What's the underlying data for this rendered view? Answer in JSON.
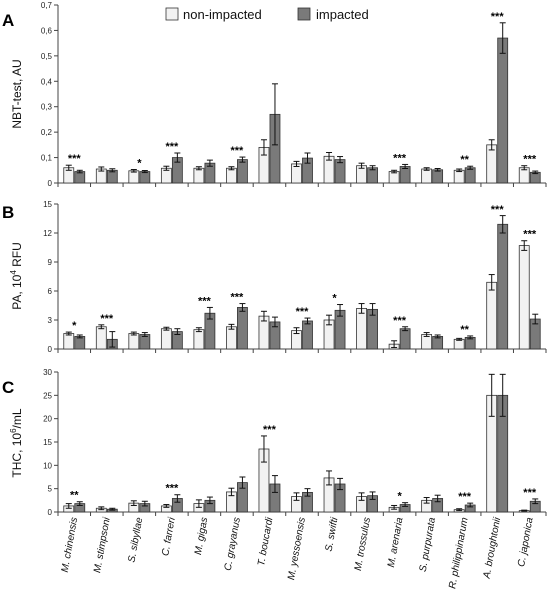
{
  "legend": {
    "entries": [
      {
        "name": "non-impacted",
        "color": "#f2f2f2"
      },
      {
        "name": "impacted",
        "color": "#7a7a7a"
      }
    ]
  },
  "categories": [
    "M. chinensis",
    "M. stimpsoni",
    "S. sibyllae",
    "C. farreri",
    "M. gigas",
    "C. grayanus",
    "T. boucardi",
    "M. yessoensis",
    "S. swifti",
    "M. trossulus",
    "M. arenaria",
    "S. purpurata",
    "R. philippinarum",
    "A. broughtonii",
    "C. japonica"
  ],
  "chart_data": [
    {
      "type": "bar",
      "panel_letter": "A",
      "ylabel": "NBT-test, AU",
      "ylim": [
        0,
        0.7
      ],
      "yticks": [
        0,
        0.1,
        0.2,
        0.3,
        0.4,
        0.5,
        0.6,
        0.7
      ],
      "ytick_labels": [
        "0",
        "0,1",
        "0,2",
        "0,3",
        "0,4",
        "0,5",
        "0,6",
        "0,7"
      ],
      "series": [
        {
          "name": "non-impacted",
          "values": [
            0.06,
            0.055,
            0.048,
            0.058,
            0.058,
            0.058,
            0.14,
            0.075,
            0.105,
            0.068,
            0.045,
            0.055,
            0.05,
            0.15,
            0.06
          ],
          "errors": [
            0.01,
            0.008,
            0.005,
            0.008,
            0.006,
            0.006,
            0.03,
            0.01,
            0.015,
            0.01,
            0.005,
            0.005,
            0.005,
            0.02,
            0.008
          ]
        },
        {
          "name": "impacted",
          "values": [
            0.045,
            0.05,
            0.045,
            0.1,
            0.078,
            0.092,
            0.27,
            0.098,
            0.092,
            0.06,
            0.065,
            0.052,
            0.06,
            0.57,
            0.042
          ],
          "errors": [
            0.005,
            0.006,
            0.004,
            0.018,
            0.012,
            0.01,
            0.12,
            0.02,
            0.012,
            0.008,
            0.008,
            0.005,
            0.006,
            0.06,
            0.005
          ]
        }
      ],
      "significance": [
        "***",
        "",
        "*",
        "***",
        "",
        "***",
        "",
        "",
        "",
        "",
        "***",
        "",
        "**",
        "***",
        "***"
      ]
    },
    {
      "type": "bar",
      "panel_letter": "B",
      "ylabel_main": "PA, 10",
      "ylabel_sup": "4",
      "ylabel_tail": " RFU",
      "ylim": [
        0,
        15
      ],
      "yticks": [
        0,
        3,
        6,
        9,
        12,
        15
      ],
      "ytick_labels": [
        "0",
        "3",
        "6",
        "9",
        "12",
        "15"
      ],
      "series": [
        {
          "name": "non-impacted",
          "values": [
            1.6,
            2.3,
            1.6,
            2.1,
            2.0,
            2.3,
            3.4,
            1.9,
            3.0,
            4.2,
            0.5,
            1.5,
            1.0,
            6.9,
            10.7
          ],
          "errors": [
            0.15,
            0.2,
            0.15,
            0.15,
            0.2,
            0.25,
            0.5,
            0.3,
            0.5,
            0.5,
            0.35,
            0.2,
            0.1,
            0.8,
            0.5
          ]
        },
        {
          "name": "impacted",
          "values": [
            1.3,
            1.0,
            1.5,
            1.8,
            3.7,
            4.3,
            2.8,
            2.9,
            4.0,
            4.1,
            2.1,
            1.3,
            1.2,
            12.9,
            3.1
          ],
          "errors": [
            0.15,
            0.8,
            0.2,
            0.3,
            0.6,
            0.4,
            0.5,
            0.3,
            0.6,
            0.6,
            0.2,
            0.15,
            0.15,
            0.9,
            0.5
          ]
        }
      ],
      "significance": [
        "*",
        "***",
        "",
        "",
        "***",
        "***",
        "",
        "***",
        "*",
        "",
        "***",
        "",
        "**",
        "***",
        "***"
      ]
    },
    {
      "type": "bar",
      "panel_letter": "C",
      "ylabel_main": "THC, 10",
      "ylabel_sup": "6",
      "ylabel_tail": "/mL",
      "ylim": [
        0,
        30
      ],
      "yticks": [
        0,
        5,
        10,
        15,
        20,
        25,
        30
      ],
      "ytick_labels": [
        "0",
        "5",
        "10",
        "15",
        "20",
        "25",
        "30"
      ],
      "series": [
        {
          "name": "non-impacted",
          "values": [
            1.3,
            0.8,
            1.9,
            1.3,
            1.8,
            4.3,
            13.5,
            3.3,
            7.3,
            3.3,
            1.0,
            2.5,
            0.5,
            25.0,
            0.3
          ],
          "errors": [
            0.5,
            0.3,
            0.5,
            0.3,
            0.8,
            0.8,
            2.8,
            0.8,
            1.5,
            0.8,
            0.4,
            0.6,
            0.2,
            4.5,
            0.1
          ]
        },
        {
          "name": "impacted",
          "values": [
            1.8,
            0.6,
            1.8,
            2.9,
            2.5,
            6.3,
            6.0,
            4.2,
            6.0,
            3.5,
            1.6,
            2.9,
            1.5,
            25.0,
            2.3
          ],
          "errors": [
            0.4,
            0.2,
            0.5,
            0.8,
            0.7,
            1.2,
            1.8,
            0.8,
            1.2,
            0.8,
            0.4,
            0.7,
            0.4,
            4.5,
            0.5
          ]
        }
      ],
      "significance": [
        "**",
        "",
        "",
        "***",
        "",
        "",
        "***",
        "",
        "",
        "",
        "*",
        "",
        "***",
        "",
        "***"
      ]
    }
  ]
}
